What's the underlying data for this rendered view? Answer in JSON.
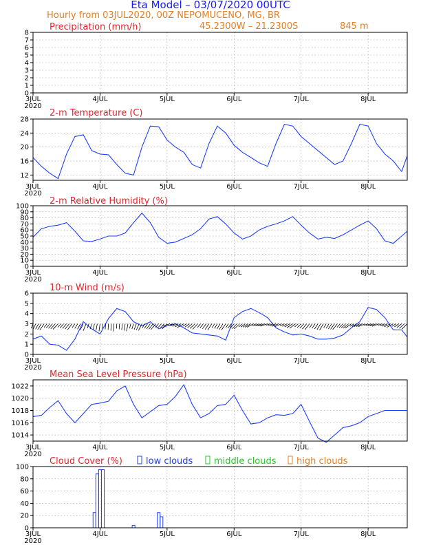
{
  "header": {
    "title": "Eta Model – 03/07/2020 00UTC",
    "subtitle_left": "Hourly from 03JUL2020, 00Z  NEPOMUCENO, MG, BR",
    "coords": "45.2300W – 21.2300S",
    "elevation": "845   m"
  },
  "x_axis": {
    "day_labels": [
      "3JUL",
      "4JUL",
      "5JUL",
      "6JUL",
      "7JUL",
      "8JUL"
    ],
    "year_label": "2020",
    "xlim_hours": [
      0,
      134
    ]
  },
  "legend": {
    "low": "low clouds",
    "middle": "middle clouds",
    "high": "high clouds"
  },
  "colors": {
    "series": "#1f3fff",
    "title_red": "#e3242b",
    "orange": "#e67e22",
    "green": "#22cc22"
  },
  "chart_data": [
    {
      "id": "precip",
      "type": "line",
      "title": "Precipitation (mm/h)",
      "ylim": [
        0,
        8
      ],
      "yticks": [
        0,
        1,
        2,
        3,
        4,
        5,
        6,
        7,
        8
      ],
      "x": [],
      "y": []
    },
    {
      "id": "temp",
      "type": "line",
      "title": "2-m Temperature (C)",
      "ylim": [
        10.5,
        28
      ],
      "yticks": [
        12,
        16,
        20,
        24,
        28
      ],
      "x": [
        0,
        3,
        6,
        9,
        12,
        15,
        18,
        21,
        24,
        27,
        30,
        33,
        36,
        39,
        42,
        45,
        48,
        51,
        54,
        57,
        60,
        63,
        66,
        69,
        72,
        75,
        78,
        81,
        84,
        87,
        90,
        93,
        96,
        99,
        102,
        105,
        108,
        111,
        114,
        117,
        120,
        123,
        126,
        129,
        132,
        134
      ],
      "y": [
        17,
        14.5,
        12.5,
        11,
        18,
        23,
        23.5,
        19,
        18,
        17.8,
        15,
        12.5,
        12,
        20,
        26,
        25.8,
        22,
        20,
        18.5,
        15,
        14,
        21,
        26,
        24,
        20.5,
        18.5,
        17,
        15.5,
        14.5,
        21,
        26.5,
        26,
        23,
        21,
        19,
        17,
        15,
        16,
        21,
        26.5,
        26,
        21,
        18,
        16,
        13,
        17.5
      ]
    },
    {
      "id": "rh",
      "type": "line",
      "title": "2-m Relative Humidity (%)",
      "ylim": [
        0,
        100
      ],
      "yticks": [
        0,
        10,
        20,
        30,
        40,
        50,
        60,
        70,
        80,
        90,
        100
      ],
      "x": [
        0,
        3,
        6,
        9,
        12,
        15,
        18,
        21,
        24,
        27,
        30,
        33,
        36,
        39,
        42,
        45,
        48,
        51,
        54,
        57,
        60,
        63,
        66,
        69,
        72,
        75,
        78,
        81,
        84,
        87,
        90,
        93,
        96,
        99,
        102,
        105,
        108,
        111,
        114,
        117,
        120,
        123,
        126,
        129,
        132,
        134
      ],
      "y": [
        48,
        62,
        66,
        68,
        72,
        58,
        42,
        41,
        45,
        50,
        50,
        55,
        72,
        88,
        72,
        48,
        38,
        40,
        46,
        52,
        62,
        78,
        82,
        70,
        55,
        45,
        50,
        60,
        66,
        70,
        75,
        82,
        68,
        55,
        45,
        48,
        46,
        52,
        60,
        68,
        75,
        62,
        42,
        38,
        50,
        58
      ]
    },
    {
      "id": "wind",
      "type": "line",
      "title": "10-m Wind (m/s)",
      "ylim": [
        0,
        6
      ],
      "yticks": [
        0,
        1,
        2,
        3,
        4,
        5,
        6
      ],
      "x": [
        0,
        3,
        6,
        9,
        12,
        15,
        18,
        21,
        24,
        27,
        30,
        33,
        36,
        39,
        42,
        45,
        48,
        51,
        54,
        57,
        60,
        63,
        66,
        69,
        72,
        75,
        78,
        81,
        84,
        87,
        90,
        93,
        96,
        99,
        102,
        105,
        108,
        111,
        114,
        117,
        120,
        123,
        126,
        129,
        132,
        134
      ],
      "y": [
        1.5,
        1.8,
        1.0,
        0.9,
        0.4,
        1.5,
        3.2,
        2.5,
        2.0,
        3.5,
        4.5,
        4.2,
        3.2,
        2.8,
        3.2,
        2.5,
        2.8,
        3.0,
        2.6,
        2.1,
        2.0,
        1.9,
        1.8,
        1.4,
        3.6,
        4.2,
        4.5,
        4.1,
        3.6,
        2.6,
        2.2,
        1.9,
        2.0,
        1.8,
        1.5,
        1.5,
        1.6,
        1.9,
        2.6,
        3.2,
        4.6,
        4.4,
        3.6,
        2.4,
        2.4,
        1.7
      ]
    },
    {
      "id": "pressure",
      "type": "line",
      "title": "Mean Sea Level Pressure (hPa)",
      "ylim": [
        1013,
        1023
      ],
      "yticks": [
        1014,
        1016,
        1018,
        1020,
        1022
      ],
      "x": [
        0,
        3,
        6,
        9,
        12,
        15,
        18,
        21,
        24,
        27,
        30,
        33,
        36,
        39,
        42,
        45,
        48,
        51,
        54,
        57,
        60,
        63,
        66,
        69,
        72,
        75,
        78,
        81,
        84,
        87,
        90,
        93,
        96,
        99,
        102,
        105,
        108,
        111,
        114,
        117,
        120,
        123,
        126,
        129,
        132,
        134
      ],
      "y": [
        1017,
        1017.2,
        1018.5,
        1019.6,
        1017.5,
        1016,
        1017.5,
        1019,
        1019.2,
        1019.5,
        1021.2,
        1022,
        1019,
        1016.8,
        1017.8,
        1018.8,
        1019,
        1020.3,
        1022.2,
        1019,
        1016.8,
        1017.5,
        1018.8,
        1019,
        1020.5,
        1018,
        1015.8,
        1016,
        1016.8,
        1017.3,
        1017.2,
        1017.5,
        1019,
        1016.2,
        1013.5,
        1012.8,
        1014,
        1015.2,
        1015.5,
        1016,
        1017,
        1017.5,
        1018,
        1018,
        1018,
        1018
      ]
    },
    {
      "id": "cloud",
      "type": "bar",
      "title": "Cloud Cover (%)",
      "ylim": [
        0,
        100
      ],
      "yticks": [
        0,
        20,
        40,
        60,
        80,
        100
      ],
      "bars": [
        {
          "x": 22,
          "value": 25
        },
        {
          "x": 23,
          "value": 88
        },
        {
          "x": 24,
          "value": 95
        },
        {
          "x": 25,
          "value": 95
        },
        {
          "x": 36,
          "value": 4
        },
        {
          "x": 45,
          "value": 25
        },
        {
          "x": 46,
          "value": 18
        }
      ]
    }
  ]
}
